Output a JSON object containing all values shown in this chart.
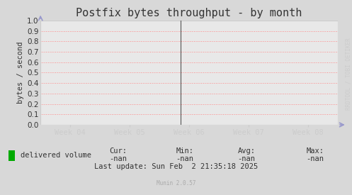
{
  "title": "Postfix bytes throughput - by month",
  "ylabel": "bytes / second",
  "fig_bg_color": "#d8d8d8",
  "plot_bg_color": "#e8e8e8",
  "grid_color": "#ff8888",
  "grid_style": ":",
  "ylim": [
    0.0,
    1.0
  ],
  "yticks": [
    0.0,
    0.1,
    0.2,
    0.3,
    0.4,
    0.5,
    0.6,
    0.7,
    0.8,
    0.9,
    1.0
  ],
  "xtick_labels": [
    "Week 04",
    "Week 05",
    "Week 06",
    "Week 07",
    "Week 08"
  ],
  "xtick_positions": [
    0.1,
    0.3,
    0.5,
    0.7,
    0.9
  ],
  "vline_x": 0.47,
  "legend_label": "delivered volume",
  "legend_color": "#00aa00",
  "cur_label": "Cur:",
  "cur_val": "-nan",
  "min_label": "Min:",
  "min_val": "-nan",
  "avg_label": "Avg:",
  "avg_val": "-nan",
  "max_label": "Max:",
  "max_val": "-nan",
  "last_update": "Last update: Sun Feb  2 21:35:18 2025",
  "munin_label": "Munin 2.0.57",
  "rrdtool_label": "RRDTOOL / TOBI OETIKER",
  "arrow_color": "#9999cc",
  "border_color": "#cccccc",
  "tick_color": "#cccccc",
  "text_color": "#333333",
  "title_fontsize": 11,
  "tick_fontsize": 7.5,
  "label_fontsize": 7.5,
  "footer_fontsize": 7.5,
  "watermark_fontsize": 5.5
}
